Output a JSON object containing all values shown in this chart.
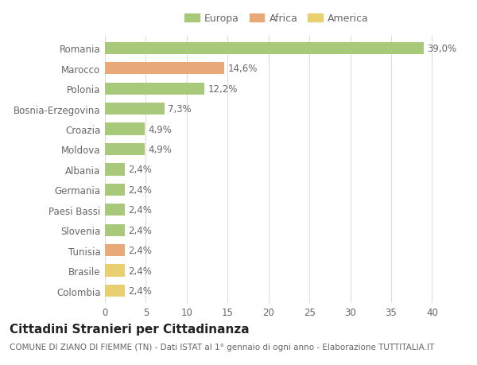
{
  "categories": [
    "Romania",
    "Marocco",
    "Polonia",
    "Bosnia-Erzegovina",
    "Croazia",
    "Moldova",
    "Albania",
    "Germania",
    "Paesi Bassi",
    "Slovenia",
    "Tunisia",
    "Brasile",
    "Colombia"
  ],
  "values": [
    39.0,
    14.6,
    12.2,
    7.3,
    4.9,
    4.9,
    2.4,
    2.4,
    2.4,
    2.4,
    2.4,
    2.4,
    2.4
  ],
  "continents": [
    "Europa",
    "Africa",
    "Europa",
    "Europa",
    "Europa",
    "Europa",
    "Europa",
    "Europa",
    "Europa",
    "Europa",
    "Africa",
    "America",
    "America"
  ],
  "colors": {
    "Europa": "#a8c87a",
    "Africa": "#e8a878",
    "America": "#e8d070"
  },
  "labels": [
    "39,0%",
    "14,6%",
    "12,2%",
    "7,3%",
    "4,9%",
    "4,9%",
    "2,4%",
    "2,4%",
    "2,4%",
    "2,4%",
    "2,4%",
    "2,4%",
    "2,4%"
  ],
  "xlim": [
    0,
    42
  ],
  "xticks": [
    0,
    5,
    10,
    15,
    20,
    25,
    30,
    35,
    40
  ],
  "title": "Cittadini Stranieri per Cittadinanza",
  "subtitle": "COMUNE DI ZIANO DI FIEMME (TN) - Dati ISTAT al 1° gennaio di ogni anno - Elaborazione TUTTITALIA.IT",
  "bg_color": "#ffffff",
  "grid_color": "#dddddd",
  "bar_height": 0.6,
  "label_fontsize": 8.5,
  "axis_label_fontsize": 8.5,
  "title_fontsize": 11,
  "subtitle_fontsize": 7.5
}
